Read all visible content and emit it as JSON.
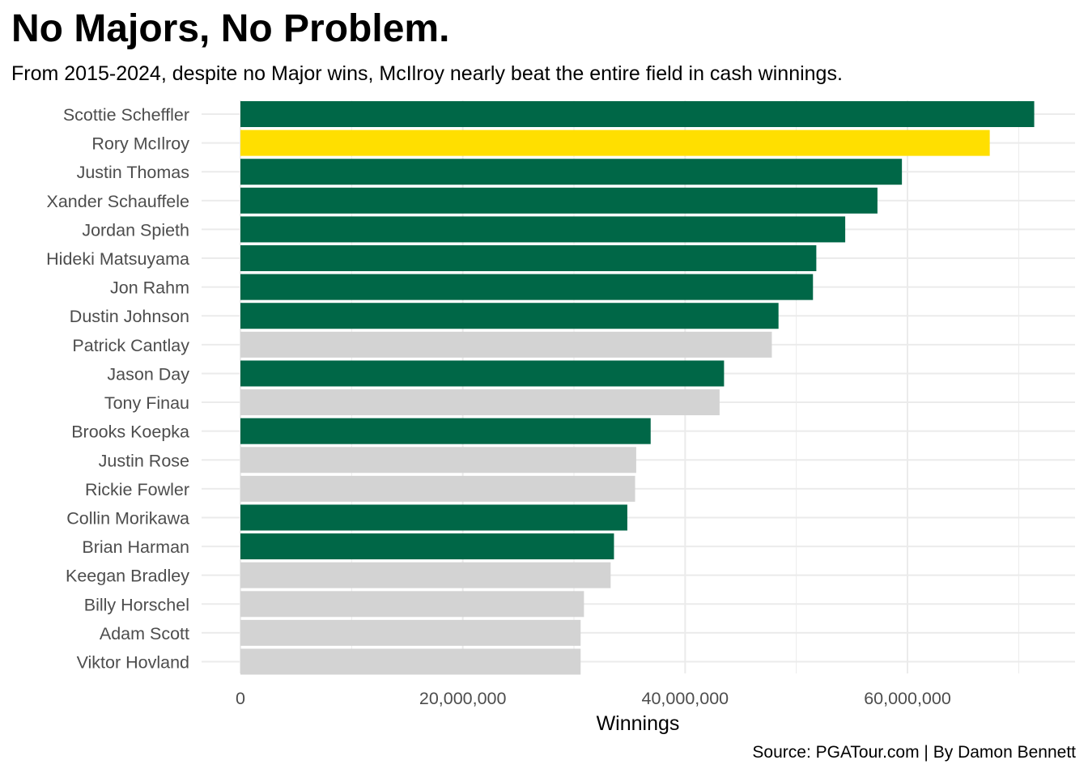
{
  "chart_data": {
    "type": "bar",
    "orientation": "horizontal",
    "title": "No Majors, No Problem.",
    "subtitle": "From 2015-2024, despite no Major wins, McIlroy nearly beat the entire field in cash winnings.",
    "caption": "Source: PGATour.com | By Damon Bennett",
    "xlabel": "Winnings",
    "ylabel": "",
    "xlim": [
      0,
      75000000
    ],
    "xticks": [
      0,
      20000000,
      40000000,
      60000000
    ],
    "xtick_labels": [
      "0",
      "20,000,000",
      "40,000,000",
      "60,000,000"
    ],
    "grid": true,
    "colors": {
      "major_winner": "#006747",
      "highlight": "#FFDF00",
      "no_major": "#D3D3D3",
      "grid": "#ebebeb"
    },
    "categories": [
      "Scottie Scheffler",
      "Rory McIlroy",
      "Justin Thomas",
      "Xander Schauffele",
      "Jordan Spieth",
      "Hideki Matsuyama",
      "Jon Rahm",
      "Dustin Johnson",
      "Patrick Cantlay",
      "Jason Day",
      "Tony Finau",
      "Brooks Koepka",
      "Justin Rose",
      "Rickie Fowler",
      "Collin Morikawa",
      "Brian Harman",
      "Keegan Bradley",
      "Billy Horschel",
      "Adam Scott",
      "Viktor Hovland"
    ],
    "values": [
      71400000,
      67400000,
      59500000,
      57300000,
      54400000,
      51800000,
      51500000,
      48400000,
      47800000,
      43500000,
      43100000,
      36900000,
      35600000,
      35500000,
      34800000,
      33600000,
      33300000,
      30900000,
      30600000,
      30600000
    ],
    "groups": [
      "major_winner",
      "highlight",
      "major_winner",
      "major_winner",
      "major_winner",
      "major_winner",
      "major_winner",
      "major_winner",
      "no_major",
      "major_winner",
      "no_major",
      "major_winner",
      "no_major",
      "no_major",
      "major_winner",
      "major_winner",
      "no_major",
      "no_major",
      "no_major",
      "no_major"
    ]
  }
}
